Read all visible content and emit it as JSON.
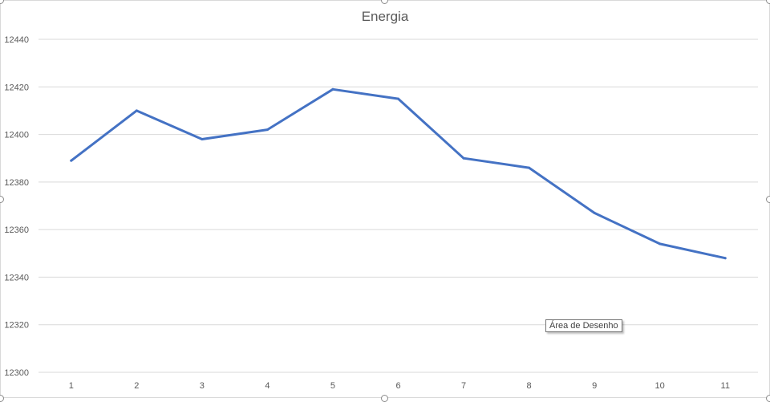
{
  "chart_data": {
    "type": "line",
    "title": "Energia",
    "xlabel": "",
    "ylabel": "",
    "categories": [
      "1",
      "2",
      "3",
      "4",
      "5",
      "6",
      "7",
      "8",
      "9",
      "10",
      "11"
    ],
    "series": [
      {
        "values": [
          12389,
          12410,
          12398,
          12402,
          12419,
          12415,
          12390,
          12386,
          12367,
          12354,
          12348
        ]
      }
    ],
    "yticks": [
      "12300",
      "12320",
      "12340",
      "12360",
      "12380",
      "12400",
      "12420",
      "12440"
    ],
    "ylim": [
      12300,
      12440
    ],
    "grid": true,
    "legend": "none",
    "line_color": "#4472c4",
    "grid_color": "#d9d9d9"
  },
  "tooltip": {
    "text": "Área de Desenho"
  }
}
